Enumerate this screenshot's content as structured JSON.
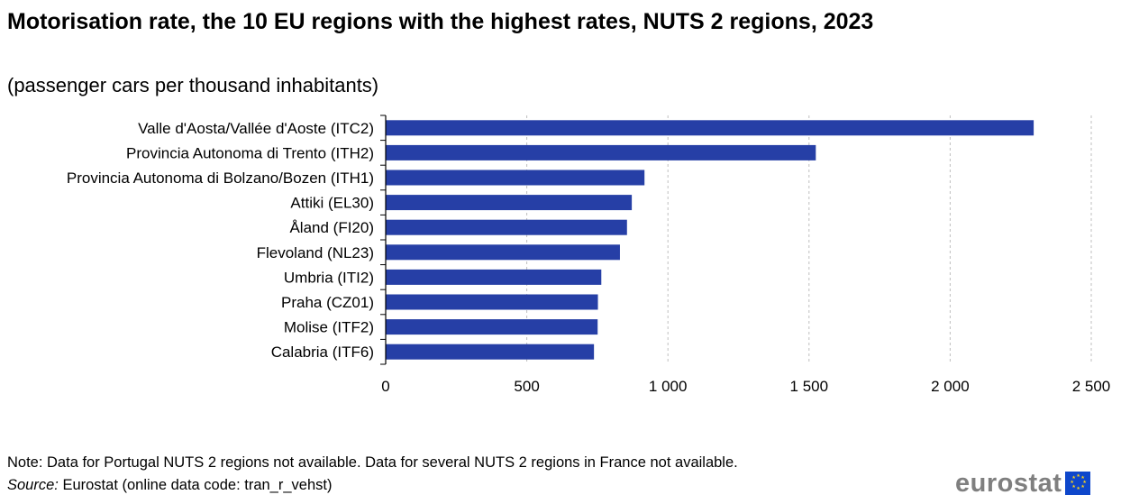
{
  "header": {
    "title": "Motorisation rate, the 10 EU regions with the highest rates, NUTS 2 regions, 2023",
    "subtitle": "(passenger cars per thousand inhabitants)"
  },
  "footer": {
    "note": "Note: Data for Portugal NUTS 2 regions not available. Data for several NUTS 2 regions in France not available.",
    "source_label": "Source:",
    "source_text": " Eurostat (online data code: tran_r_vehst)",
    "logo_text": "eurostat",
    "logo_icon": "eu-flag-icon"
  },
  "colors": {
    "bar": "#263fa6",
    "grid": "#bfbfbf",
    "axis": "#000000"
  },
  "chart_data": {
    "type": "bar",
    "orientation": "horizontal",
    "categories": [
      "Valle d'Aosta/Vallée d'Aoste (ITC2)",
      "Provincia Autonoma di Trento (ITH2)",
      "Provincia Autonoma di Bolzano/Bozen (ITH1)",
      "Attiki (EL30)",
      "Åland (FI20)",
      "Flevoland (NL23)",
      "Umbria (ITI2)",
      "Praha (CZ01)",
      "Molise (ITF2)",
      "Calabria (ITF6)"
    ],
    "values": [
      2296,
      1524,
      917,
      872,
      855,
      830,
      764,
      752,
      751,
      738
    ],
    "xlim": [
      0,
      2500
    ],
    "ticks": [
      0,
      500,
      1000,
      1500,
      2000,
      2500
    ],
    "tick_labels": [
      "0",
      "500",
      "1 000",
      "1 500",
      "2 000",
      "2 500"
    ],
    "grid": "vertical-dashed",
    "legend": "none"
  }
}
